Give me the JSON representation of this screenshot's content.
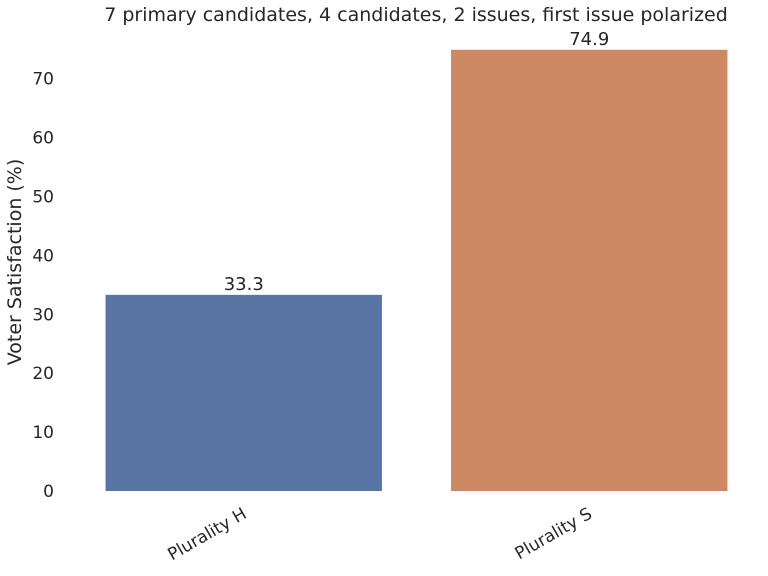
{
  "chart_data": {
    "type": "bar",
    "title": "7 primary candidates, 4 candidates, 2 issues, first issue polarized",
    "xlabel": "",
    "ylabel": "Voter Satisfaction (%)",
    "categories": [
      "Plurality H",
      "Plurality S"
    ],
    "values": [
      33.3,
      74.9
    ],
    "data_labels": [
      "33.3",
      "74.9"
    ],
    "bar_colors": [
      "#5975a4",
      "#cc8963"
    ],
    "ylim": [
      0,
      78.6
    ],
    "yticks": [
      0,
      10,
      20,
      30,
      40,
      50,
      60,
      70
    ],
    "grid": false,
    "legend": "none"
  }
}
